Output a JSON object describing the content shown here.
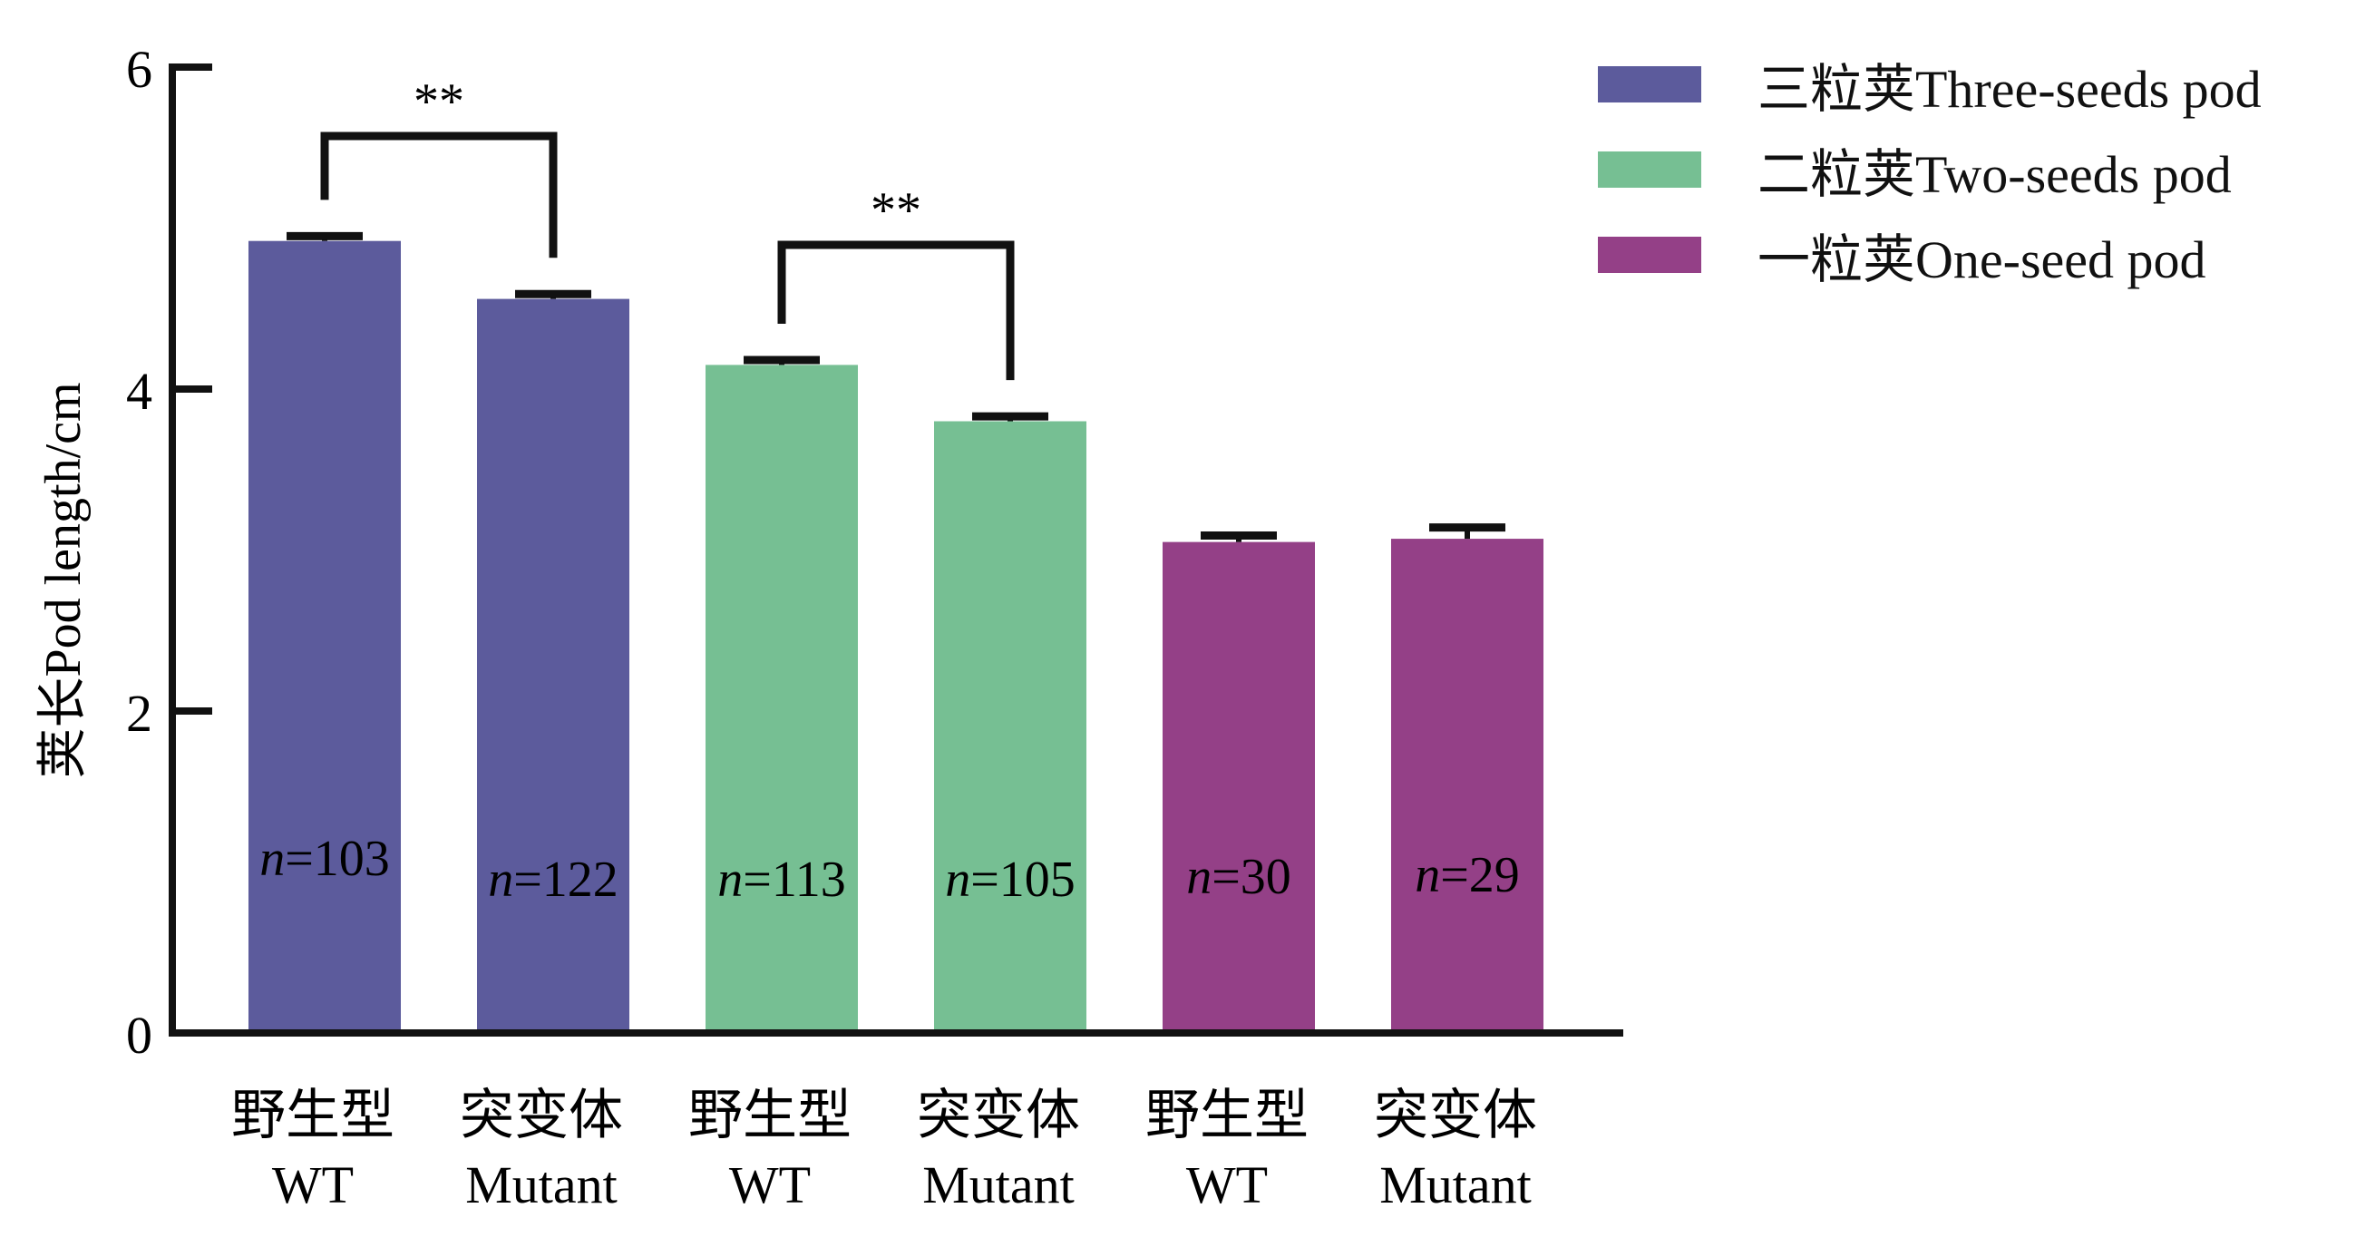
{
  "chart_data": {
    "type": "bar",
    "title": "",
    "xlabel": "",
    "ylabel": "荚长Pod length/cm",
    "ylim": [
      0,
      6
    ],
    "yticks": [
      "0",
      "2",
      "4",
      "6"
    ],
    "ytick_values": [
      0,
      2,
      4,
      6
    ],
    "grid": false,
    "legend_position": "top-right",
    "categories": [
      {
        "cn": "野生型",
        "en": "WT"
      },
      {
        "cn": "突变体",
        "en": "Mutant"
      },
      {
        "cn": "野生型",
        "en": "WT"
      },
      {
        "cn": "突变体",
        "en": "Mutant"
      },
      {
        "cn": "野生型",
        "en": "WT"
      },
      {
        "cn": "突变体",
        "en": "Mutant"
      }
    ],
    "series": [
      {
        "name": "三粒荚Three-seeds pod",
        "color": "#5c5b9c",
        "indices": [
          0,
          1
        ]
      },
      {
        "name": "二粒荚Two-seeds pod",
        "color": "#76bf93",
        "indices": [
          2,
          3
        ]
      },
      {
        "name": "一粒荚One-seed pod",
        "color": "#944087",
        "indices": [
          4,
          5
        ]
      }
    ],
    "values": [
      4.92,
      4.56,
      4.15,
      3.8,
      3.05,
      3.07
    ],
    "errors": [
      0.03,
      0.03,
      0.03,
      0.03,
      0.04,
      0.07
    ],
    "n_labels": [
      "n=103",
      "n=122",
      "n=113",
      "n=105",
      "n=30",
      "n=29"
    ],
    "n_prefix": "n",
    "n_values": [
      "=103",
      "=122",
      "=113",
      "=105",
      "=30",
      "=29"
    ],
    "significance": [
      {
        "pair": [
          0,
          1
        ],
        "label": "**"
      },
      {
        "pair": [
          2,
          3
        ],
        "label": "**"
      }
    ]
  }
}
